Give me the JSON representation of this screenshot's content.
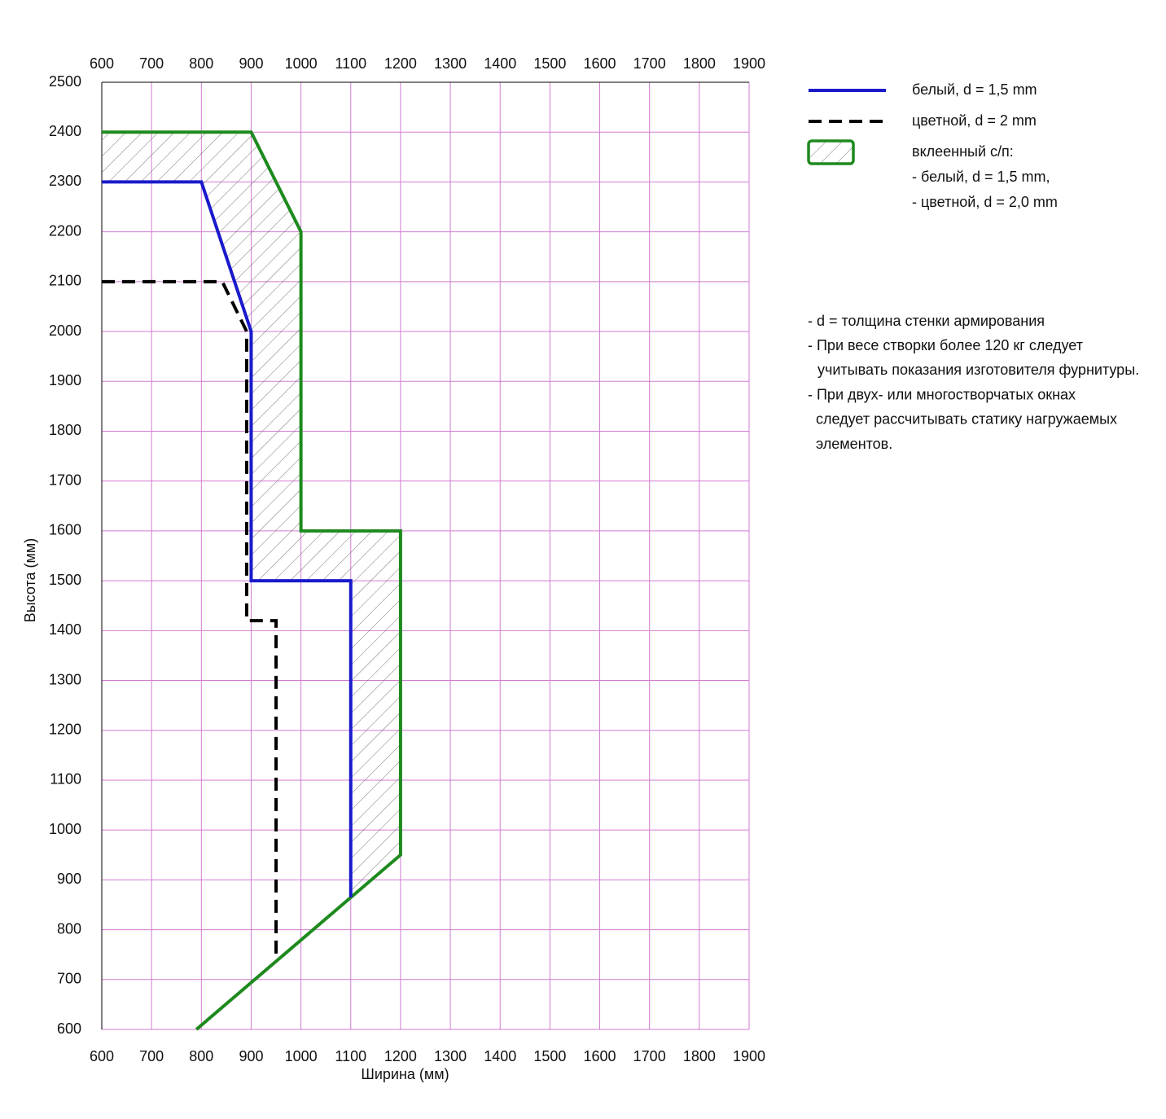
{
  "chart_data": {
    "type": "line",
    "xlabel": "Ширина (мм)",
    "ylabel": "Высота (мм)",
    "xlim": [
      600,
      1900
    ],
    "ylim": [
      600,
      2500
    ],
    "xticks": [
      600,
      700,
      800,
      900,
      1000,
      1100,
      1200,
      1300,
      1400,
      1500,
      1600,
      1700,
      1800,
      1900
    ],
    "yticks": [
      600,
      700,
      800,
      900,
      1000,
      1100,
      1200,
      1300,
      1400,
      1500,
      1600,
      1700,
      1800,
      1900,
      2000,
      2100,
      2200,
      2300,
      2400,
      2500
    ],
    "grid": true,
    "grid_color": "#d37bd3",
    "series": [
      {
        "name": "белый, d = 1,5 mm",
        "color": "#1a1acc",
        "style": "solid",
        "x": [
          600,
          800,
          900,
          900,
          1100,
          1100
        ],
        "values": [
          2300,
          2300,
          2000,
          1500,
          1500,
          865
        ]
      },
      {
        "name": "цветной, d = 2 mm",
        "color": "#000000",
        "style": "dashed",
        "x": [
          600,
          842,
          891,
          891,
          950,
          950
        ],
        "values": [
          2100,
          2100,
          2000,
          1420,
          1420,
          745
        ]
      },
      {
        "name": "вклеенный с/п:",
        "color": "#1e8a1e",
        "style": "solid",
        "hatched": true,
        "legend_details": [
          "- белый, d = 1,5 mm,",
          "- цветной, d = 2,0 mm"
        ],
        "x": [
          600,
          900,
          1000,
          1000,
          1200,
          1200,
          790
        ],
        "values": [
          2400,
          2400,
          2200,
          1600,
          1600,
          950,
          600
        ]
      }
    ],
    "notes": [
      "- d = толщина стенки армирования",
      "- При весе створки более 120 кг следует",
      "учитывать показания изготовителя фурнитуры.",
      "- При двух- или многостворчатых окнах",
      "следует рассчитывать статику нагружаемых",
      "элементов."
    ]
  }
}
